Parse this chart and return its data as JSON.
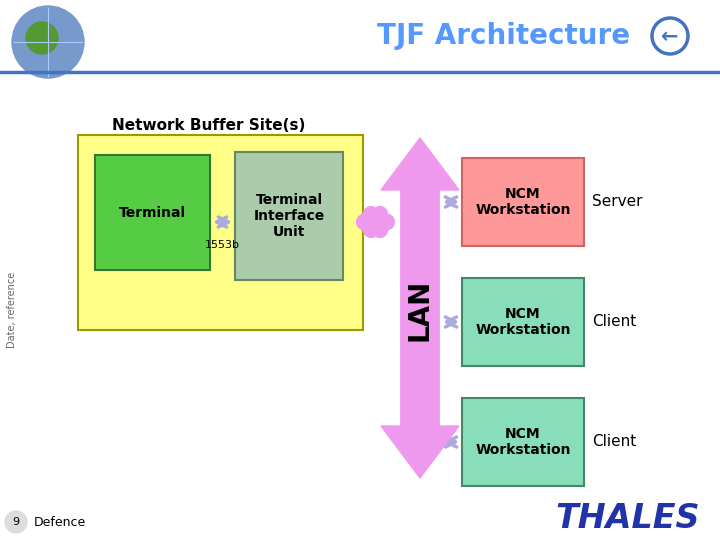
{
  "title": "TJF Architecture",
  "bg_color": "#ffffff",
  "header_line_color": "#4472c4",
  "title_color": "#5599ff",
  "title_fontsize": 20,
  "nb_label": "Network Buffer Site(s)",
  "nb_box_color": "#ffff88",
  "terminal_color": "#55cc44",
  "terminal_label": "Terminal",
  "tiu_color": "#aaccaa",
  "tiu_label": "Terminal\nInterface\nUnit",
  "bus_label": "1553b",
  "lan_label": "LAN",
  "lan_arrow_color": "#ee99ee",
  "ncm_server_color": "#ff9999",
  "ncm_client_color": "#88ddbb",
  "ncm_label": "NCM\nWorkstation",
  "server_label": "Server",
  "client_label": "Client",
  "bidir_arrow_color": "#aaaadd",
  "horiz_arrow_color": "#ee99ee",
  "footer_text": "Date, reference",
  "slide_num": "9",
  "defence_label": "Defence",
  "thales_color": "#2233aa"
}
